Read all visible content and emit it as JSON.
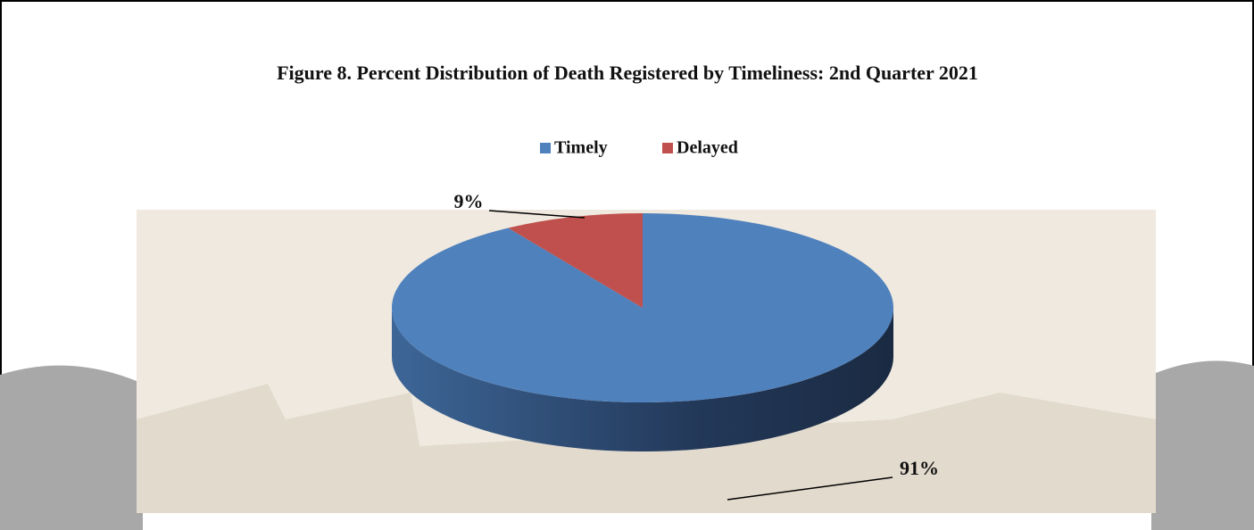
{
  "chart_data": {
    "type": "pie",
    "title": "Figure 8. Percent Distribution of Death Registered by Timeliness: 2nd Quarter 2021",
    "categories": [
      "Timely",
      "Delayed"
    ],
    "values": [
      91,
      9
    ],
    "value_labels": [
      "91%",
      "9%"
    ],
    "colors": [
      "#4f81bd",
      "#c0504d"
    ],
    "legend": "top"
  }
}
